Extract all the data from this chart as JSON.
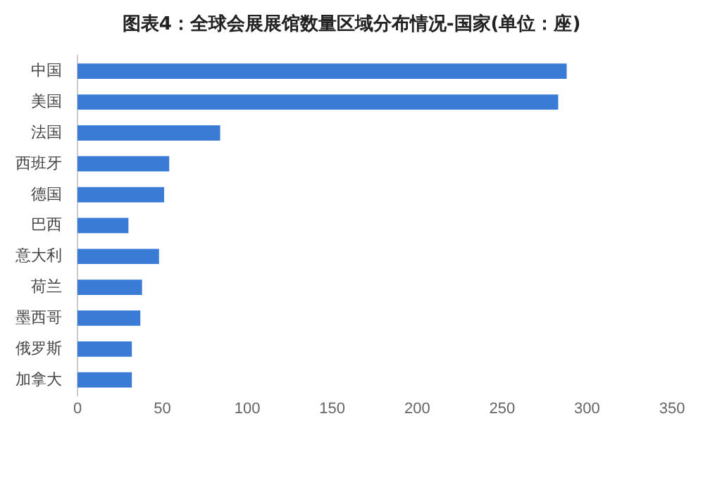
{
  "chart_data": {
    "type": "bar",
    "orientation": "horizontal",
    "title": "图表4：全球会展展馆数量区域分布情况-国家(单位：座)",
    "categories": [
      "中国",
      "美国",
      "法国",
      "西班牙",
      "德国",
      "巴西",
      "意大利",
      "荷兰",
      "墨西哥",
      "俄罗斯",
      "加拿大"
    ],
    "values": [
      288,
      283,
      84,
      54,
      51,
      30,
      48,
      38,
      37,
      32,
      32
    ],
    "color": "#3a7bd5",
    "xlim": [
      0,
      350
    ],
    "xticks": [
      0,
      50,
      100,
      150,
      200,
      250,
      300,
      350
    ],
    "grid": false,
    "legend": false
  }
}
